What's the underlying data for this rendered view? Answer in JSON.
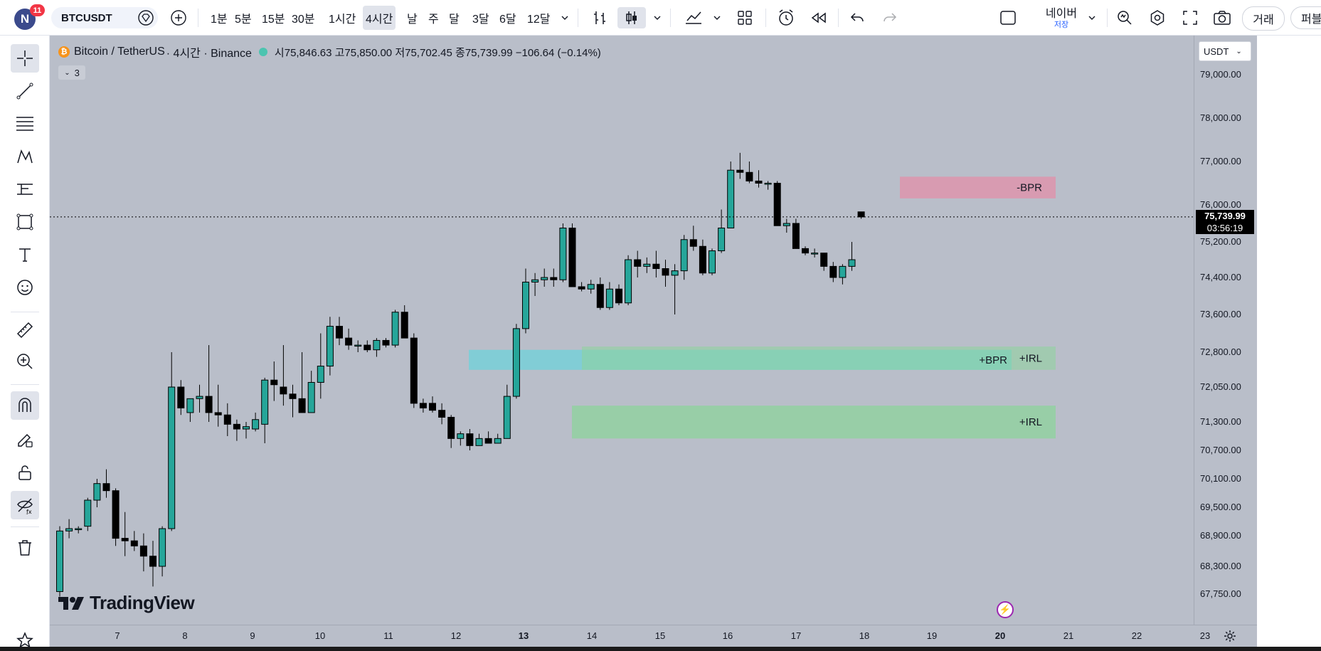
{
  "topbar": {
    "logo_letter": "N",
    "notification_count": "11",
    "symbol": "BTCUSDT",
    "intervals": [
      "1분",
      "5분",
      "15분",
      "30분",
      "1시간",
      "4시간",
      "날",
      "주",
      "달",
      "3달",
      "6달",
      "12달"
    ],
    "active_interval": "4시간",
    "layout_name": "네이버",
    "layout_status": "저장",
    "trade_button": "거래",
    "right_cut_button": "퍼블"
  },
  "legend": {
    "pair": "Bitcoin / TetherUS",
    "interval": " · 4시간 · Binance",
    "ohlc": "시75,846.63  고75,850.00  저75,702.45  종75,739.99  −106.64 (−0.14%)",
    "indicator_count": "3"
  },
  "currency_select": "USDT",
  "last_price": "75,739.99",
  "countdown": "03:56:19",
  "watermark": "TradingView",
  "price_axis_labels": [
    "79,000.00",
    "78,000.00",
    "77,000.00",
    "76,000.00",
    "75,200.00",
    "74,400.00",
    "73,600.00",
    "72,800.00",
    "72,050.00",
    "71,300.00",
    "70,700.00",
    "70,100.00",
    "69,500.00",
    "68,900.00",
    "68,300.00",
    "67,750.00"
  ],
  "time_axis_labels": [
    "7",
    "8",
    "9",
    "10",
    "11",
    "12",
    "13",
    "14",
    "15",
    "16",
    "17",
    "18",
    "19",
    "20",
    "21",
    "22",
    "23"
  ],
  "zones": [
    {
      "label": "-BPR",
      "color": "#e38fa8"
    },
    {
      "label": "+BPR",
      "color": "#6fd1da"
    },
    {
      "label": "+IRL",
      "color": "#8ed39b"
    },
    {
      "label": "+IRL",
      "color": "#8ed39b"
    }
  ],
  "chart_data": {
    "type": "candlestick",
    "symbol": "BTCUSDT",
    "interval": "4h",
    "up_color": "#26a69a",
    "down_color": "#000000",
    "last_close": 75739.99,
    "ylim": [
      67500,
      79300
    ],
    "candles": [
      {
        "o": 67800,
        "h": 69100,
        "l": 67700,
        "c": 69000
      },
      {
        "o": 69000,
        "h": 69250,
        "l": 68850,
        "c": 69050
      },
      {
        "o": 69050,
        "h": 69100,
        "l": 68950,
        "c": 69050
      },
      {
        "o": 69100,
        "h": 69700,
        "l": 69000,
        "c": 69650
      },
      {
        "o": 69650,
        "h": 70100,
        "l": 69500,
        "c": 70000
      },
      {
        "o": 70000,
        "h": 70300,
        "l": 69700,
        "c": 69850
      },
      {
        "o": 69850,
        "h": 69900,
        "l": 68700,
        "c": 68850
      },
      {
        "o": 68850,
        "h": 69400,
        "l": 68500,
        "c": 68800
      },
      {
        "o": 68800,
        "h": 69000,
        "l": 68600,
        "c": 68700
      },
      {
        "o": 68700,
        "h": 68950,
        "l": 68200,
        "c": 68500
      },
      {
        "o": 68500,
        "h": 68800,
        "l": 67900,
        "c": 68300
      },
      {
        "o": 68300,
        "h": 69100,
        "l": 68100,
        "c": 69050
      },
      {
        "o": 69050,
        "h": 72800,
        "l": 69000,
        "c": 72050
      },
      {
        "o": 72050,
        "h": 72200,
        "l": 71450,
        "c": 71600
      },
      {
        "o": 71500,
        "h": 71800,
        "l": 71300,
        "c": 71800
      },
      {
        "o": 71800,
        "h": 72100,
        "l": 71500,
        "c": 71850
      },
      {
        "o": 71850,
        "h": 72950,
        "l": 71300,
        "c": 71500
      },
      {
        "o": 71500,
        "h": 72100,
        "l": 71200,
        "c": 71450
      },
      {
        "o": 71450,
        "h": 71700,
        "l": 71000,
        "c": 71250
      },
      {
        "o": 71250,
        "h": 71350,
        "l": 70900,
        "c": 71150
      },
      {
        "o": 71150,
        "h": 71300,
        "l": 70950,
        "c": 71200
      },
      {
        "o": 71150,
        "h": 71500,
        "l": 71100,
        "c": 71350
      },
      {
        "o": 71250,
        "h": 72250,
        "l": 70850,
        "c": 72200
      },
      {
        "o": 72200,
        "h": 72600,
        "l": 71750,
        "c": 72100
      },
      {
        "o": 72050,
        "h": 72950,
        "l": 71650,
        "c": 71900
      },
      {
        "o": 71900,
        "h": 72100,
        "l": 71400,
        "c": 71800
      },
      {
        "o": 71800,
        "h": 72800,
        "l": 71500,
        "c": 71500
      },
      {
        "o": 71500,
        "h": 72400,
        "l": 71600,
        "c": 72150
      },
      {
        "o": 72150,
        "h": 73200,
        "l": 71800,
        "c": 72500
      },
      {
        "o": 72500,
        "h": 73550,
        "l": 72300,
        "c": 73350
      },
      {
        "o": 73350,
        "h": 73550,
        "l": 72950,
        "c": 73100
      },
      {
        "o": 73100,
        "h": 73300,
        "l": 72850,
        "c": 72950
      },
      {
        "o": 72950,
        "h": 73050,
        "l": 72800,
        "c": 72950
      },
      {
        "o": 72950,
        "h": 73050,
        "l": 72800,
        "c": 72850
      },
      {
        "o": 72850,
        "h": 73100,
        "l": 72700,
        "c": 73050
      },
      {
        "o": 73050,
        "h": 73100,
        "l": 72900,
        "c": 72950
      },
      {
        "o": 72950,
        "h": 73700,
        "l": 72900,
        "c": 73650
      },
      {
        "o": 73650,
        "h": 73800,
        "l": 73150,
        "c": 73100
      },
      {
        "o": 73100,
        "h": 73200,
        "l": 71600,
        "c": 71700
      },
      {
        "o": 71700,
        "h": 71800,
        "l": 71500,
        "c": 71600
      },
      {
        "o": 71700,
        "h": 71850,
        "l": 71500,
        "c": 71550
      },
      {
        "o": 71550,
        "h": 71700,
        "l": 71250,
        "c": 71400
      },
      {
        "o": 71400,
        "h": 71450,
        "l": 70750,
        "c": 70950
      },
      {
        "o": 70950,
        "h": 71100,
        "l": 70800,
        "c": 71050
      },
      {
        "o": 71050,
        "h": 71150,
        "l": 70700,
        "c": 70800
      },
      {
        "o": 70800,
        "h": 71050,
        "l": 70800,
        "c": 70950
      },
      {
        "o": 70950,
        "h": 71100,
        "l": 70850,
        "c": 70850
      },
      {
        "o": 70850,
        "h": 71050,
        "l": 70850,
        "c": 70950
      },
      {
        "o": 70950,
        "h": 72100,
        "l": 70950,
        "c": 71850
      },
      {
        "o": 71850,
        "h": 73400,
        "l": 71800,
        "c": 73300
      },
      {
        "o": 73300,
        "h": 74600,
        "l": 73200,
        "c": 74300
      },
      {
        "o": 74300,
        "h": 74500,
        "l": 74000,
        "c": 74350
      },
      {
        "o": 74350,
        "h": 74600,
        "l": 74200,
        "c": 74400
      },
      {
        "o": 74400,
        "h": 74600,
        "l": 74200,
        "c": 74350
      },
      {
        "o": 74350,
        "h": 75600,
        "l": 74300,
        "c": 75500
      },
      {
        "o": 75500,
        "h": 75600,
        "l": 74200,
        "c": 74200
      },
      {
        "o": 74200,
        "h": 74300,
        "l": 74100,
        "c": 74150
      },
      {
        "o": 74150,
        "h": 74350,
        "l": 74050,
        "c": 74250
      },
      {
        "o": 74250,
        "h": 74400,
        "l": 73700,
        "c": 73750
      },
      {
        "o": 73750,
        "h": 74300,
        "l": 73700,
        "c": 74150
      },
      {
        "o": 74150,
        "h": 74250,
        "l": 73800,
        "c": 73850
      },
      {
        "o": 73850,
        "h": 74900,
        "l": 73800,
        "c": 74800
      },
      {
        "o": 74800,
        "h": 75000,
        "l": 74400,
        "c": 74650
      },
      {
        "o": 74650,
        "h": 74850,
        "l": 74500,
        "c": 74700
      },
      {
        "o": 74700,
        "h": 75000,
        "l": 74400,
        "c": 74600
      },
      {
        "o": 74600,
        "h": 74800,
        "l": 74200,
        "c": 74450
      },
      {
        "o": 74450,
        "h": 74700,
        "l": 73600,
        "c": 74550
      },
      {
        "o": 74550,
        "h": 75350,
        "l": 74350,
        "c": 75250
      },
      {
        "o": 75250,
        "h": 75550,
        "l": 75000,
        "c": 75100
      },
      {
        "o": 75100,
        "h": 75250,
        "l": 74450,
        "c": 74500
      },
      {
        "o": 74500,
        "h": 75050,
        "l": 74450,
        "c": 75000
      },
      {
        "o": 75000,
        "h": 75900,
        "l": 74950,
        "c": 75500
      },
      {
        "o": 75500,
        "h": 77000,
        "l": 75500,
        "c": 76800
      },
      {
        "o": 76800,
        "h": 77200,
        "l": 76600,
        "c": 76750
      },
      {
        "o": 76750,
        "h": 77000,
        "l": 76500,
        "c": 76550
      },
      {
        "o": 76550,
        "h": 76800,
        "l": 76400,
        "c": 76500
      },
      {
        "o": 76500,
        "h": 76550,
        "l": 76350,
        "c": 76500
      },
      {
        "o": 76500,
        "h": 76550,
        "l": 75550,
        "c": 75550
      },
      {
        "o": 75550,
        "h": 75700,
        "l": 75400,
        "c": 75600
      },
      {
        "o": 75600,
        "h": 75700,
        "l": 75050,
        "c": 75050
      },
      {
        "o": 75050,
        "h": 75100,
        "l": 74900,
        "c": 74950
      },
      {
        "o": 74950,
        "h": 75050,
        "l": 74850,
        "c": 74950
      },
      {
        "o": 74950,
        "h": 74950,
        "l": 74550,
        "c": 74650
      },
      {
        "o": 74650,
        "h": 74750,
        "l": 74300,
        "c": 74400
      },
      {
        "o": 74400,
        "h": 74700,
        "l": 74250,
        "c": 74650
      },
      {
        "o": 74650,
        "h": 75200,
        "l": 74550,
        "c": 74800
      },
      {
        "o": 75850,
        "h": 75850,
        "l": 75700,
        "c": 75740
      }
    ]
  }
}
